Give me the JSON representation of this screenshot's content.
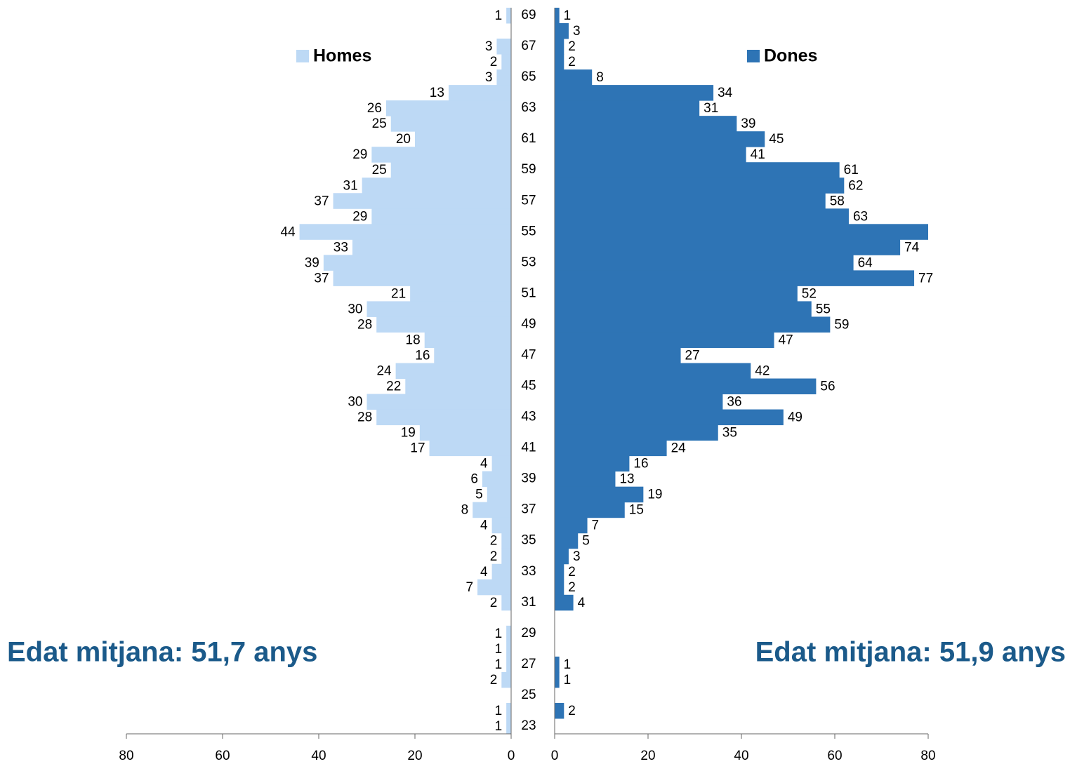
{
  "chart_data": {
    "type": "pyramid",
    "categories": [
      "69",
      null,
      "67",
      null,
      "65",
      null,
      "63",
      null,
      "61",
      null,
      "59",
      null,
      "57",
      null,
      "55",
      null,
      "53",
      null,
      "51",
      null,
      "49",
      null,
      "47",
      null,
      "45",
      null,
      "43",
      null,
      "41",
      null,
      "39",
      null,
      "37",
      null,
      "35",
      null,
      "33",
      null,
      "31",
      null,
      "29",
      null,
      "27",
      null,
      "25",
      null,
      "23"
    ],
    "series": [
      {
        "name": "Homes",
        "color": "#bdd9f5",
        "side": "left",
        "values": [
          1,
          null,
          3,
          2,
          3,
          13,
          26,
          25,
          20,
          29,
          25,
          31,
          37,
          29,
          44,
          33,
          39,
          37,
          21,
          30,
          28,
          18,
          16,
          24,
          22,
          30,
          28,
          19,
          17,
          4,
          6,
          5,
          8,
          4,
          2,
          2,
          4,
          7,
          2,
          null,
          1,
          1,
          1,
          2,
          null,
          1,
          1
        ]
      },
      {
        "name": "Dones",
        "color": "#2e74b5",
        "side": "right",
        "values": [
          1,
          3,
          2,
          2,
          8,
          34,
          31,
          39,
          45,
          41,
          61,
          62,
          58,
          63,
          80,
          74,
          64,
          77,
          52,
          55,
          59,
          47,
          27,
          42,
          56,
          36,
          49,
          35,
          24,
          16,
          13,
          19,
          15,
          7,
          5,
          3,
          2,
          2,
          4,
          null,
          null,
          null,
          1,
          1,
          null,
          2,
          null
        ],
        "value_labels": [
          "1",
          "3",
          "2",
          "2",
          "8",
          "34",
          "31",
          "39",
          "45",
          "41",
          "61",
          "62",
          "58",
          "63",
          null,
          "74",
          "64",
          "77",
          "52",
          "55",
          "59",
          "47",
          "27",
          "42",
          "56",
          "36",
          "49",
          "35",
          "24",
          "16",
          "13",
          "19",
          "15",
          "7",
          "5",
          "3",
          "2",
          "2",
          "4",
          null,
          null,
          null,
          "1",
          "1",
          null,
          "2",
          null
        ]
      }
    ],
    "annotations": [
      "Edat mitjana: 51,7 anys",
      "Edat mitjana: 51,9 anys"
    ],
    "xlim": [
      0,
      80
    ],
    "xticks": [
      0,
      20,
      40,
      60,
      80
    ]
  }
}
